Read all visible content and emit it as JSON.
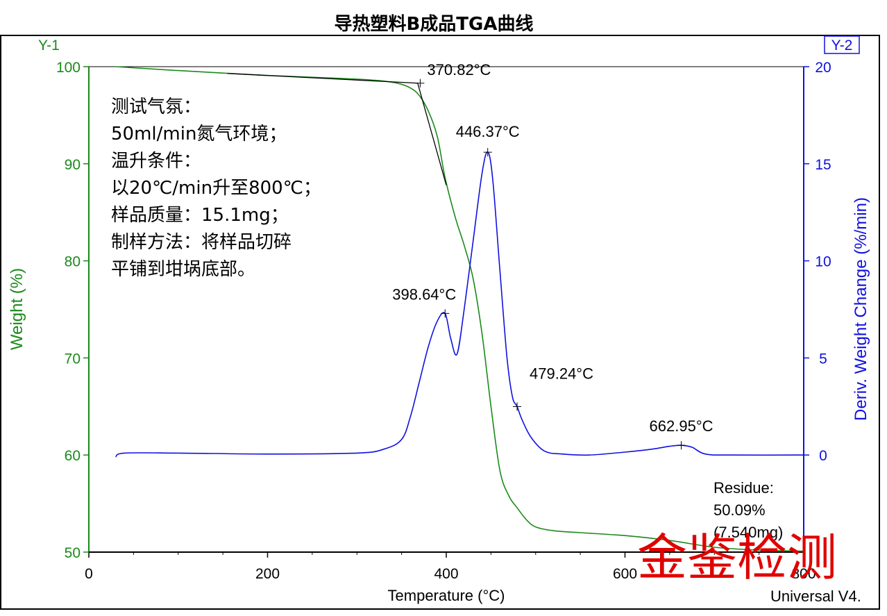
{
  "chart_data": {
    "type": "line",
    "title": "导热塑料B成品TGA曲线",
    "xlabel": "Temperature (°C)",
    "ylabel_left": "Weight (%)",
    "ylabel_right": "Deriv. Weight Change (%/min)",
    "y1_tag": "Y-1",
    "y2_tag": "Y-2",
    "footer": "Universal V4.",
    "xlim": [
      0,
      800
    ],
    "ylim_left": [
      50,
      100
    ],
    "ylim_right": [
      -5,
      20
    ],
    "x_ticks": [
      "0",
      "200",
      "400",
      "600",
      "800"
    ],
    "y_left_ticks": [
      "100",
      "90",
      "80",
      "70",
      "60",
      "50"
    ],
    "y_right_ticks": [
      "20",
      "15",
      "10",
      "5",
      "0"
    ],
    "colors": {
      "weight": "#1a8a1a",
      "deriv": "#1010e0",
      "tangent": "#000000",
      "watermark": "#e00000"
    },
    "series": [
      {
        "name": "Weight (%)",
        "axis": "left",
        "x": [
          30,
          100,
          200,
          280,
          320,
          345,
          360,
          370,
          380,
          390,
          398.6,
          410,
          420,
          430,
          440,
          450,
          460,
          470,
          479,
          490,
          500,
          520,
          550,
          600,
          650,
          700,
          750,
          800
        ],
        "values": [
          100,
          99.6,
          99.1,
          98.8,
          98.6,
          98.3,
          97.8,
          97.0,
          95.4,
          92.8,
          88.6,
          84.5,
          81.6,
          78.2,
          72.5,
          65.0,
          58.4,
          55.8,
          54.6,
          53.3,
          52.6,
          52.2,
          52.0,
          51.7,
          51.2,
          50.5,
          50.2,
          50.1
        ]
      },
      {
        "name": "Deriv. Weight Change (%/min)",
        "axis": "right",
        "x": [
          30,
          40,
          100,
          200,
          300,
          330,
          350,
          360,
          370,
          380,
          390,
          398.6,
          405,
          412,
          420,
          430,
          440,
          446.4,
          452,
          460,
          468,
          474,
          479.2,
          485,
          495,
          510,
          530,
          560,
          600,
          630,
          650,
          662.9,
          675,
          690,
          720,
          800
        ],
        "values": [
          -0.1,
          0.1,
          0.1,
          0.05,
          0.1,
          0.3,
          0.8,
          2.0,
          3.8,
          5.6,
          6.9,
          7.3,
          6.0,
          5.2,
          7.5,
          11.0,
          14.5,
          15.6,
          14.2,
          9.5,
          5.0,
          3.0,
          2.5,
          1.8,
          0.9,
          0.2,
          0.05,
          0.0,
          0.15,
          0.3,
          0.45,
          0.5,
          0.4,
          0.05,
          0.0,
          0.0
        ]
      }
    ],
    "annotations": [
      {
        "label": "370.82°C",
        "x": 370.82,
        "series": "weight"
      },
      {
        "label": "398.64°C",
        "x": 398.64,
        "series": "deriv"
      },
      {
        "label": "446.37°C",
        "x": 446.37,
        "series": "deriv"
      },
      {
        "label": "479.24°C",
        "x": 479.24,
        "series": "deriv"
      },
      {
        "label": "662.95°C",
        "x": 662.95,
        "series": "deriv"
      }
    ],
    "tangent": {
      "x": [
        155,
        368
      ],
      "values": [
        99.3,
        98.3
      ],
      "x2": [
        368,
        400
      ],
      "values2": [
        98.3,
        87.8
      ]
    },
    "residue": [
      "Residue:",
      "50.09%",
      "(7.540mg)"
    ],
    "notes": [
      "测试气氛：",
      "50ml/min氮气环境；",
      "温升条件：",
      "以20℃/min升至800℃；",
      "样品质量：15.1mg；",
      "制样方法：将样品切碎",
      "平铺到坩埚底部。"
    ],
    "watermark": "金鉴检测",
    "grid": false,
    "legend": "none"
  }
}
